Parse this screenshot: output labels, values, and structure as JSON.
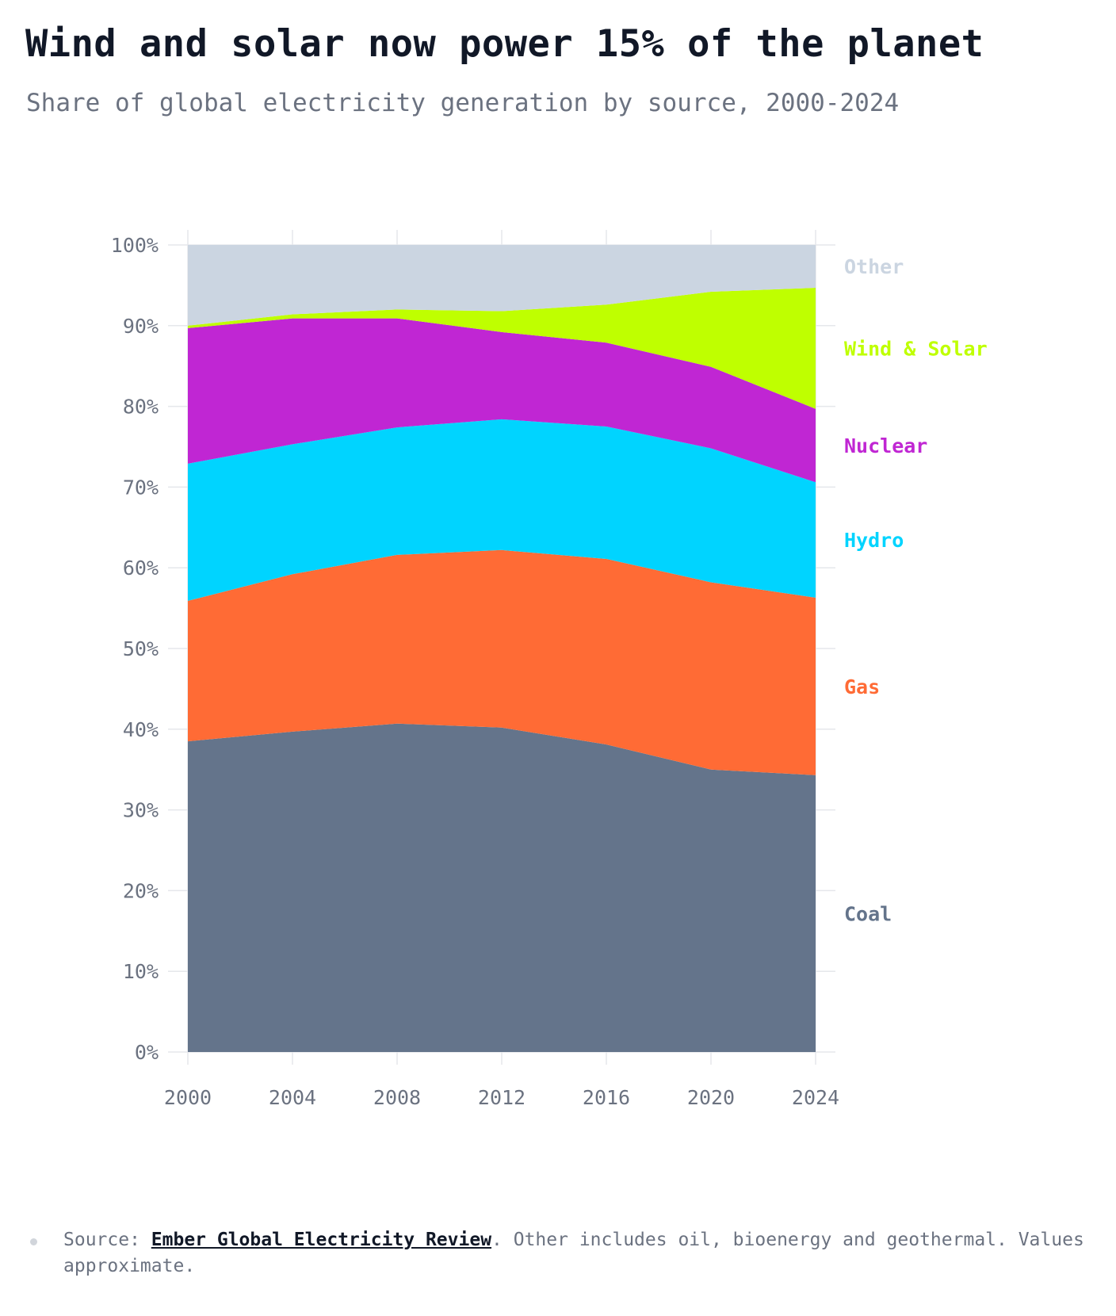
{
  "header": {
    "title": "Wind and solar now power 15% of the planet",
    "subtitle": "Share of global electricity generation by source, 2000-2024"
  },
  "chart_data": {
    "type": "area",
    "stacked": true,
    "x": [
      2000,
      2004,
      2008,
      2012,
      2016,
      2020,
      2024
    ],
    "series": [
      {
        "name": "Coal",
        "color": "#64748b",
        "values": [
          38.5,
          39.7,
          40.7,
          40.2,
          38.1,
          35.0,
          34.3
        ]
      },
      {
        "name": "Gas",
        "color": "#ff6b35",
        "values": [
          17.4,
          19.5,
          20.9,
          22.0,
          23.0,
          23.2,
          22.0
        ]
      },
      {
        "name": "Hydro",
        "color": "#00d4ff",
        "values": [
          17.0,
          16.1,
          15.8,
          16.2,
          16.4,
          16.6,
          14.3
        ]
      },
      {
        "name": "Nuclear",
        "color": "#c026d3",
        "values": [
          16.8,
          15.6,
          13.5,
          10.8,
          10.4,
          10.1,
          9.1
        ]
      },
      {
        "name": "Wind & Solar",
        "color": "#bfff00",
        "values": [
          0.3,
          0.5,
          1.1,
          2.6,
          4.7,
          9.3,
          15.0
        ]
      },
      {
        "name": "Other",
        "color": "#cbd5e1",
        "values": [
          10.0,
          8.6,
          8.0,
          8.2,
          7.4,
          5.8,
          5.3
        ]
      }
    ],
    "y_tick_labels": [
      "0%",
      "10%",
      "20%",
      "30%",
      "40%",
      "50%",
      "60%",
      "70%",
      "80%",
      "90%",
      "100%"
    ],
    "x_tick_labels": [
      "2000",
      "2004",
      "2008",
      "2012",
      "2016",
      "2020",
      "2024"
    ],
    "ylim": [
      0,
      100
    ],
    "xlim": [
      2000,
      2024
    ],
    "grid": true,
    "legend": "direct labels right of plot"
  },
  "footnote": {
    "prefix": "Source: ",
    "link_text": "Ember Global Electricity Review",
    "suffix": ". Other includes oil, bioenergy and geothermal. Values approximate."
  }
}
